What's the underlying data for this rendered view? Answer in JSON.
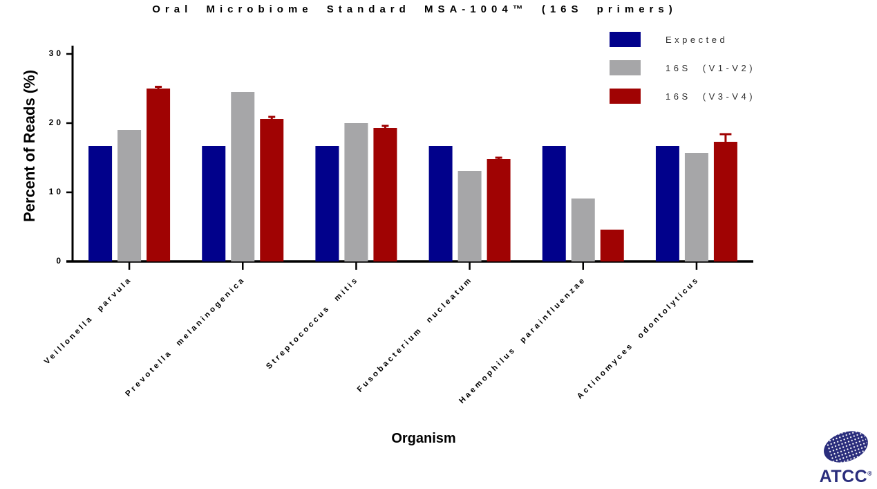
{
  "page": {
    "background": "#FFFFFF"
  },
  "chart_data": {
    "type": "bar",
    "title": "Oral Microbiome Standard MSA-1004™  (16S primers)",
    "xlabel": "Organism",
    "ylabel": "Percent of Reads (%)",
    "ylim": [
      0,
      30
    ],
    "yticks": [
      0,
      10,
      20,
      30
    ],
    "grid": false,
    "legend_position": "top-right",
    "categories": [
      "Veillonella parvula",
      "Prevotella melaninogenica",
      "Streptococcus mitis",
      "Fusobacterium nucleatum",
      "Haemophilus parainfluenzae",
      "Actinomyces odontolyticus"
    ],
    "series": [
      {
        "name": "Expected",
        "color": "#01018B",
        "values": [
          16.7,
          16.7,
          16.7,
          16.7,
          16.7,
          16.7
        ],
        "errors": [
          0,
          0,
          0,
          0,
          0,
          0
        ]
      },
      {
        "name": "16S (V1-V2)",
        "color": "#A6A6A8",
        "values": [
          19.0,
          24.5,
          20.0,
          13.1,
          9.1,
          15.7
        ],
        "errors": [
          0,
          0,
          0,
          0,
          0,
          0
        ]
      },
      {
        "name": "16S (V3-V4)",
        "color": "#A00303",
        "values": [
          25.0,
          20.6,
          19.3,
          14.8,
          4.6,
          17.3
        ],
        "errors": [
          0.25,
          0.3,
          0.3,
          0.2,
          0,
          1.1
        ]
      }
    ]
  },
  "branding": {
    "logo_text": "ATCC",
    "registered_mark": "®",
    "logo_color": "#2A2D7C"
  }
}
